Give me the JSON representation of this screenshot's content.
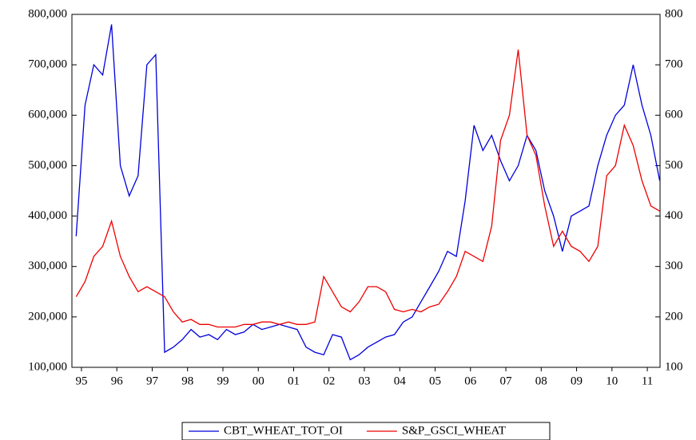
{
  "chart_data": {
    "type": "line",
    "x": [
      1995.35,
      1995.6,
      1995.85,
      1996.1,
      1996.35,
      1996.6,
      1996.85,
      1997.1,
      1997.35,
      1997.6,
      1997.85,
      1998.1,
      1998.35,
      1998.6,
      1998.85,
      1999.1,
      1999.35,
      1999.6,
      1999.85,
      2000.1,
      2000.35,
      2000.6,
      2000.85,
      2001.1,
      2001.35,
      2001.6,
      2001.85,
      2002.1,
      2002.35,
      2002.6,
      2002.85,
      2003.1,
      2003.35,
      2003.6,
      2003.85,
      2004.1,
      2004.35,
      2004.6,
      2004.85,
      2005.1,
      2005.35,
      2005.6,
      2005.85,
      2006.1,
      2006.35,
      2006.6,
      2006.85,
      2007.1,
      2007.35,
      2007.6,
      2007.85,
      2008.1,
      2008.35,
      2008.6,
      2008.85,
      2009.1,
      2009.35,
      2009.6,
      2009.85,
      2010.1,
      2010.35,
      2010.6,
      2010.85,
      2011.1,
      2011.35,
      2011.6,
      2011.85
    ],
    "xlim": [
      1995.23,
      2011.86
    ],
    "xticks": [
      {
        "value": 1995.5,
        "label": "95"
      },
      {
        "value": 1996.5,
        "label": "96"
      },
      {
        "value": 1997.5,
        "label": "97"
      },
      {
        "value": 1998.5,
        "label": "98"
      },
      {
        "value": 1999.5,
        "label": "99"
      },
      {
        "value": 2000.5,
        "label": "00"
      },
      {
        "value": 2001.5,
        "label": "01"
      },
      {
        "value": 2002.5,
        "label": "02"
      },
      {
        "value": 2003.5,
        "label": "03"
      },
      {
        "value": 2004.5,
        "label": "04"
      },
      {
        "value": 2005.5,
        "label": "05"
      },
      {
        "value": 2006.5,
        "label": "06"
      },
      {
        "value": 2007.5,
        "label": "07"
      },
      {
        "value": 2008.5,
        "label": "08"
      },
      {
        "value": 2009.5,
        "label": "09"
      },
      {
        "value": 2010.5,
        "label": "10"
      },
      {
        "value": 2011.5,
        "label": "11"
      }
    ],
    "ylim": [
      100000,
      800000
    ],
    "yticks": [
      {
        "value": 100000,
        "label": "100,000"
      },
      {
        "value": 200000,
        "label": "200,000"
      },
      {
        "value": 300000,
        "label": "300,000"
      },
      {
        "value": 400000,
        "label": "400,000"
      },
      {
        "value": 500000,
        "label": "500,000"
      },
      {
        "value": 600000,
        "label": "600,000"
      },
      {
        "value": 700000,
        "label": "700,000"
      },
      {
        "value": 800000,
        "label": "800,000"
      }
    ],
    "y2lim": [
      100,
      800
    ],
    "y2ticks": [
      100,
      200,
      300,
      400,
      500,
      600,
      700,
      800
    ],
    "series": [
      {
        "name": "CBT_WHEAT_TOT_OI",
        "color": "#0000dd",
        "values": [
          360000,
          620000,
          700000,
          680000,
          780000,
          500000,
          440000,
          480000,
          700000,
          720000,
          130000,
          140000,
          155000,
          175000,
          160000,
          165000,
          155000,
          175000,
          165000,
          170000,
          185000,
          175000,
          180000,
          185000,
          180000,
          175000,
          140000,
          130000,
          125000,
          165000,
          160000,
          115000,
          125000,
          140000,
          150000,
          160000,
          165000,
          190000,
          200000,
          230000,
          260000,
          290000,
          330000,
          320000,
          430000,
          580000,
          530000,
          560000,
          510000,
          470000,
          500000,
          560000,
          530000,
          450000,
          400000,
          330000,
          400000,
          410000,
          420000,
          500000,
          560000,
          600000,
          620000,
          700000,
          620000,
          560000,
          470000
        ]
      },
      {
        "name": "S&P_GSCI_WHEAT",
        "color": "#ee0000",
        "axis": "y2",
        "values": [
          240,
          270,
          320,
          340,
          390,
          320,
          280,
          250,
          260,
          250,
          240,
          210,
          190,
          195,
          185,
          185,
          180,
          180,
          180,
          185,
          185,
          190,
          190,
          185,
          190,
          185,
          185,
          190,
          280,
          250,
          220,
          210,
          230,
          260,
          260,
          250,
          215,
          210,
          215,
          210,
          220,
          225,
          250,
          280,
          330,
          320,
          310,
          380,
          550,
          600,
          730,
          560,
          520,
          420,
          340,
          370,
          340,
          330,
          310,
          340,
          480,
          500,
          580,
          540,
          470,
          420,
          410
        ]
      }
    ]
  }
}
